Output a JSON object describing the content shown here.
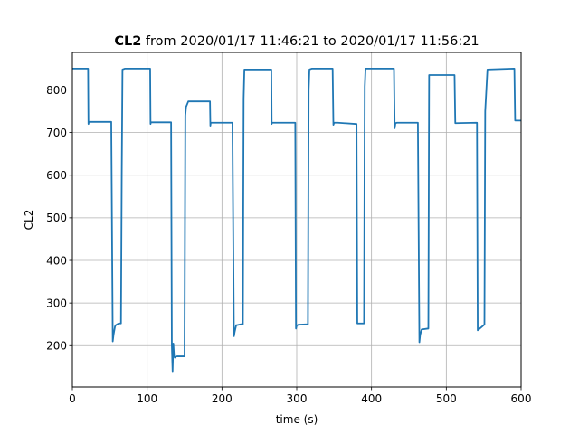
{
  "chart_data": {
    "type": "line",
    "title_bold": "CL2",
    "title_rest": " from 2020/01/17 11:46:21 to 2020/01/17 11:56:21",
    "xlabel": "time (s)",
    "ylabel": "CL2",
    "xlim": [
      0,
      600
    ],
    "ylim": [
      103,
      888
    ],
    "xticks": [
      0,
      100,
      200,
      300,
      400,
      500,
      600
    ],
    "yticks": [
      200,
      300,
      400,
      500,
      600,
      700,
      800
    ],
    "grid": true,
    "line_color": "#1f77b4",
    "series": [
      {
        "x": [
          0,
          21,
          21.5,
          22,
          52,
          54,
          55,
          57,
          58,
          60,
          62,
          65,
          66,
          67,
          70,
          104,
          104.5,
          105,
          132,
          133,
          134,
          135,
          136,
          137,
          138,
          140,
          150,
          151,
          152,
          155,
          184,
          184.5,
          185,
          214,
          216,
          217,
          219,
          220,
          225,
          228,
          229,
          230,
          266,
          266.5,
          267,
          298,
          299,
          300,
          302,
          315,
          316,
          317,
          320,
          348,
          349,
          350,
          355,
          380,
          381,
          382,
          390,
          391,
          392,
          395,
          430,
          431,
          432,
          434,
          462,
          464,
          465,
          467,
          475,
          476,
          477,
          480,
          510,
          511,
          512,
          540,
          541,
          542,
          550,
          551,
          552,
          555,
          590,
          591,
          592,
          600
        ],
        "y": [
          850,
          850,
          720,
          725,
          725,
          210,
          225,
          245,
          248,
          250,
          252,
          252,
          600,
          848,
          850,
          850,
          720,
          724,
          724,
          200,
          140,
          205,
          175,
          172,
          174,
          175,
          175,
          740,
          760,
          773,
          773,
          716,
          723,
          723,
          222,
          232,
          248,
          248,
          250,
          250,
          780,
          848,
          848,
          720,
          723,
          723,
          240,
          247,
          249,
          250,
          800,
          848,
          850,
          850,
          718,
          723,
          723,
          720,
          252,
          252,
          252,
          808,
          850,
          850,
          850,
          710,
          722,
          723,
          723,
          208,
          225,
          238,
          240,
          240,
          835,
          835,
          835,
          835,
          722,
          723,
          723,
          236,
          248,
          250,
          750,
          848,
          850,
          850,
          728,
          728
        ]
      }
    ]
  }
}
